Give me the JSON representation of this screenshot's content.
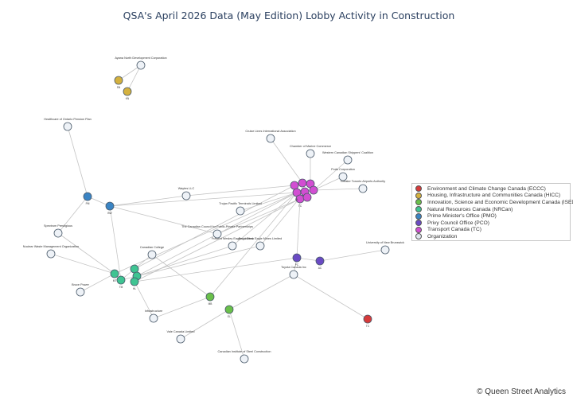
{
  "title": "QSA's April 2026 Data (May Edition) Lobby Activity in Construction",
  "credit": "© Queen Street Analytics",
  "legend": [
    {
      "label": "Environment and Climate Change Canada (ECCC)",
      "color": "#d63a3a"
    },
    {
      "label": "Housing, Infrastructure and Communities Canada (HICC)",
      "color": "#d4b13e"
    },
    {
      "label": "Innovation, Science and Economic Development Canada (ISED)",
      "color": "#6ac04a"
    },
    {
      "label": "Natural Resources Canada (NRCan)",
      "color": "#3fc492"
    },
    {
      "label": "Prime Minister's Office (PMO)",
      "color": "#3a84c4"
    },
    {
      "label": "Privy Council Office (PCO)",
      "color": "#6a4ac4"
    },
    {
      "label": "Transport Canada (TC)",
      "color": "#d24ed2"
    },
    {
      "label": "Organization",
      "color": "#dfe6ee"
    }
  ],
  "organizations": [
    "Ayana North Development Corporation",
    "Healthcare of Ontario Pension Plan",
    "Cruise Lines International Association",
    "Chamber of Marine Commerce",
    "Western Canadian Shippers' Coalition",
    "Ports Corporation",
    "Greater Toronto Airports Authority",
    "Waytes LLC",
    "Trojan Pacific Terminals Limited",
    "Spectrum Prestigious",
    "The Canadian Council for Public-Private Partnerships",
    "Nuclear Waste Management Organization",
    "Canadian College",
    "Fraserd Wesley Eagles Limited",
    "Doga Dena Eagle Mines Limited",
    "University of New Brunswick",
    "Toyota Canada Inc",
    "Bruce Power",
    "Infrastructure",
    "Vale Canada Limited",
    "Canadian Institute of Steel Construction"
  ],
  "official_labels": [
    "SN",
    "KN",
    "PM",
    "BW",
    "MT",
    "TC",
    "PC",
    "AC",
    "TM",
    "GL",
    "MB",
    "HL",
    "EL"
  ]
}
